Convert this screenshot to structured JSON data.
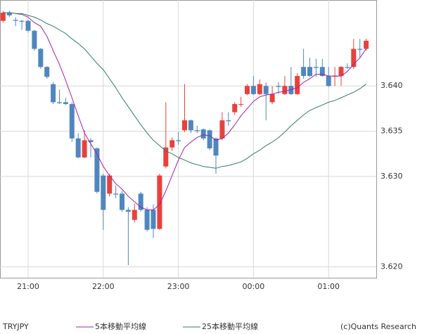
{
  "chart_data": {
    "type": "candlestick",
    "symbol": "TRYJPY",
    "credit": "(c)Quants Research",
    "categories": [
      null,
      null,
      null,
      null,
      "21:00",
      null,
      null,
      null,
      null,
      null,
      null,
      null,
      null,
      null,
      null,
      null,
      "22:00",
      null,
      null,
      null,
      null,
      null,
      null,
      null,
      null,
      null,
      null,
      null,
      "23:00",
      null,
      null,
      null,
      null,
      null,
      null,
      null,
      null,
      null,
      null,
      null,
      "00:00",
      null,
      null,
      null,
      null,
      null,
      null,
      null,
      null,
      null,
      null,
      null,
      "01:00",
      null,
      null,
      null,
      null,
      null,
      null
    ],
    "open": [
      3.6472,
      3.6481,
      3.6473,
      3.6472,
      3.6472,
      3.6461,
      3.6441,
      3.6421,
      3.6402,
      3.6382,
      3.6382,
      3.638,
      3.6342,
      3.6321,
      3.634,
      3.6331,
      3.6301,
      3.6281,
      3.6281,
      3.6281,
      3.6263,
      3.6252,
      3.6281,
      3.6263,
      3.6263,
      3.6242,
      3.6311,
      3.6332,
      3.634,
      3.6351,
      3.6362,
      3.6351,
      3.6352,
      3.6351,
      3.6342,
      3.6342,
      3.6362,
      3.6371,
      3.638,
      3.6391,
      3.64,
      3.6391,
      3.64,
      3.6382,
      3.64,
      3.6391,
      3.64,
      3.6391,
      3.6421,
      3.6421,
      3.6421,
      3.6421,
      3.6411,
      3.6411,
      3.6411,
      3.6421,
      3.6421,
      3.6441,
      3.6441
    ],
    "high": [
      3.6483,
      3.6483,
      3.6476,
      3.6473,
      3.6473,
      3.6462,
      3.6442,
      3.6422,
      3.6404,
      3.6396,
      3.6387,
      3.6382,
      3.6348,
      3.6351,
      3.6342,
      3.6332,
      3.6303,
      3.6303,
      3.629,
      3.6284,
      3.6266,
      3.627,
      3.6283,
      3.6266,
      3.6269,
      3.6303,
      3.6382,
      3.6343,
      3.6349,
      3.6402,
      3.6363,
      3.6356,
      3.6353,
      3.6352,
      3.6343,
      3.6371,
      3.6371,
      3.6382,
      3.6388,
      3.6402,
      3.6411,
      3.6407,
      3.6404,
      3.64,
      3.6404,
      3.6411,
      3.6421,
      3.6414,
      3.6441,
      3.6431,
      3.643,
      3.643,
      3.6421,
      3.6421,
      3.6422,
      3.6425,
      3.6452,
      3.6452,
      3.6452
    ],
    "low": [
      3.647,
      3.6476,
      3.6466,
      3.6462,
      3.6459,
      3.6439,
      3.6419,
      3.6408,
      3.638,
      3.638,
      3.6379,
      3.6338,
      3.632,
      3.632,
      3.6321,
      3.6281,
      3.6241,
      3.6278,
      3.6276,
      3.6261,
      3.6202,
      3.6249,
      3.6261,
      3.6239,
      3.6232,
      3.6241,
      3.6309,
      3.6328,
      3.6335,
      3.6349,
      3.6348,
      3.6348,
      3.634,
      3.6329,
      3.6303,
      3.634,
      3.6356,
      3.6368,
      3.6377,
      3.639,
      3.639,
      3.639,
      3.6362,
      3.638,
      3.6391,
      3.639,
      3.639,
      3.639,
      3.6408,
      3.641,
      3.641,
      3.641,
      3.6399,
      3.64,
      3.64,
      3.6419,
      3.6419,
      3.6431,
      3.6439
    ],
    "close": [
      3.6481,
      3.6478,
      3.6472,
      3.6471,
      3.6461,
      3.6441,
      3.6421,
      3.641,
      3.6382,
      3.6381,
      3.638,
      3.6342,
      3.6321,
      3.634,
      3.6338,
      3.6283,
      3.6263,
      3.6301,
      3.628,
      3.6263,
      3.6261,
      3.6263,
      3.6263,
      3.6241,
      3.6242,
      3.6301,
      3.6332,
      3.634,
      3.6339,
      3.6362,
      3.6351,
      3.635,
      3.6342,
      3.6331,
      3.6323,
      3.6362,
      3.6361,
      3.638,
      3.638,
      3.64,
      3.6391,
      3.6402,
      3.6391,
      3.6391,
      3.6399,
      3.64,
      3.6391,
      3.6411,
      3.6411,
      3.6411,
      3.642,
      3.6411,
      3.64,
      3.6411,
      3.6421,
      3.642,
      3.6441,
      3.644,
      3.645
    ],
    "up_color": "#e8413c",
    "down_color": "#4f86c0",
    "series": [
      {
        "name": "5本移動平均線",
        "color": "#a020a0",
        "values": [
          3.6481,
          3.6481,
          3.648,
          3.6479,
          3.6476,
          3.647,
          3.6466,
          3.6455,
          3.6439,
          3.6424,
          3.6406,
          3.6387,
          3.6367,
          3.6348,
          3.6336,
          3.6325,
          3.6311,
          3.6301,
          3.6292,
          3.6286,
          3.6278,
          3.6272,
          3.6266,
          3.6263,
          3.6263,
          3.6269,
          3.6284,
          3.6301,
          3.6318,
          3.6332,
          3.6338,
          3.6343,
          3.6346,
          3.6345,
          3.634,
          3.6342,
          3.6348,
          3.6357,
          3.6367,
          3.6375,
          3.6383,
          3.6388,
          3.639,
          3.6391,
          3.6393,
          3.6394,
          3.6396,
          3.6398,
          3.6404,
          3.6408,
          3.6413,
          3.6413,
          3.6411,
          3.6411,
          3.6411,
          3.6416,
          3.6424,
          3.6431,
          3.6441
        ]
      },
      {
        "name": "25本移動平均線",
        "color": "#2e7a6a",
        "values": [
          3.6481,
          3.6481,
          3.648,
          3.648,
          3.6478,
          3.6476,
          3.6473,
          3.6469,
          3.6466,
          3.6462,
          3.6458,
          3.6452,
          3.6447,
          3.6441,
          3.6433,
          3.6425,
          3.6418,
          3.6408,
          3.6398,
          3.6387,
          3.6377,
          3.6367,
          3.6357,
          3.6348,
          3.634,
          3.6334,
          3.6328,
          3.6325,
          3.6321,
          3.6318,
          3.6315,
          3.6313,
          3.6311,
          3.631,
          3.6309,
          3.6311,
          3.6312,
          3.6314,
          3.6316,
          3.632,
          3.6325,
          3.6329,
          3.6334,
          3.6338,
          3.6343,
          3.6349,
          3.6356,
          3.6362,
          3.6368,
          3.6373,
          3.6376,
          3.6379,
          3.6382,
          3.6384,
          3.6387,
          3.639,
          3.6393,
          3.6397,
          3.6402
        ]
      }
    ],
    "ylim": [
      3.6188,
      3.6495
    ],
    "yticks": [
      {
        "value": 3.64,
        "label": "3.640"
      },
      3.635,
      {
        "value": 3.63,
        "label": "3.630"
      },
      {
        "value": 3.62,
        "label": "3.620"
      }
    ],
    "grid": true
  }
}
